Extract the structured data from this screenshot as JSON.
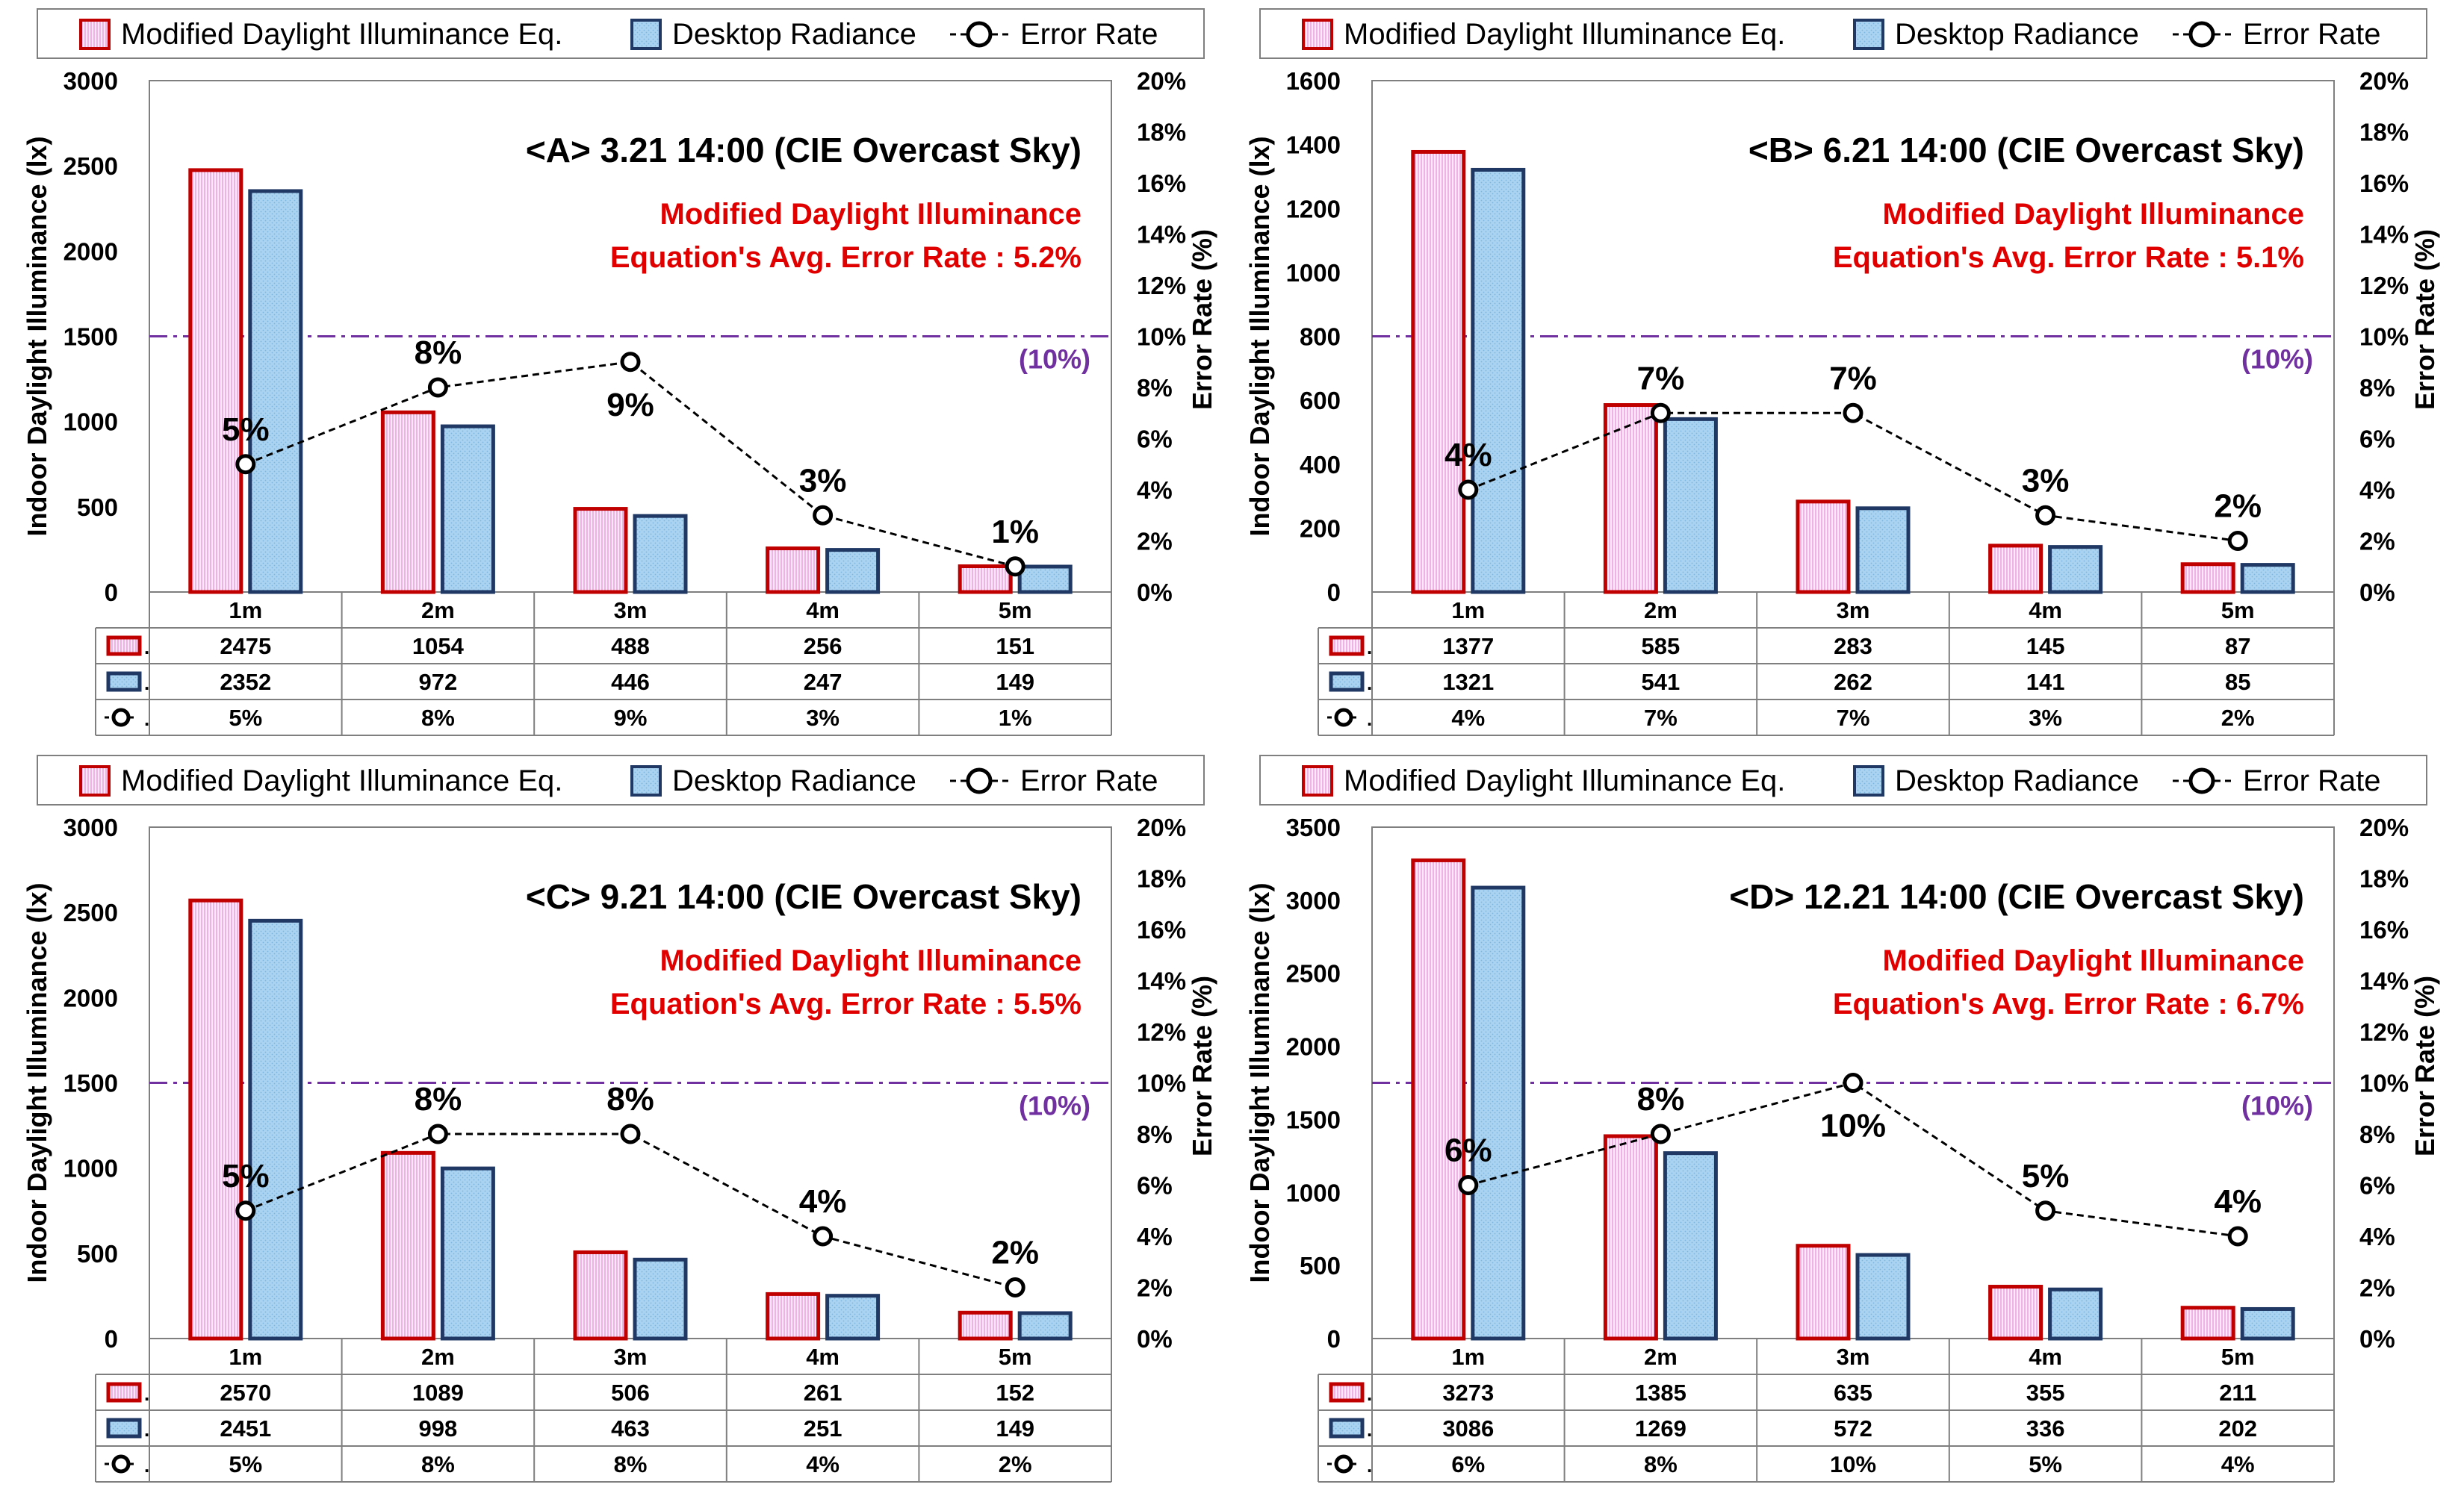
{
  "legend": {
    "modified": "Modified Daylight Illuminance Eq.",
    "desktop": "Desktop Radiance",
    "error": "Error Rate"
  },
  "axes": {
    "ylabel": "Indoor Daylight Illuminance (lx)",
    "y2label": "Error Rate (%)",
    "y2_ticks": [
      "0%",
      "2%",
      "4%",
      "6%",
      "8%",
      "10%",
      "12%",
      "14%",
      "16%",
      "18%",
      "20%"
    ],
    "threshold_label": "(10%)"
  },
  "colors": {
    "modified_border": "#c00000",
    "modified_fill": "#fbe3f7",
    "desktop_border": "#1f3864",
    "desktop_fill": "#a9d3f0",
    "threshold": "#7030a0",
    "annotation": "#e00000"
  },
  "chart_data": [
    {
      "type": "bar",
      "title": "<A> 3.21 14:00 (CIE Overcast Sky)",
      "annotation_line1": "Modified Daylight Illuminance",
      "annotation_line2": "Equation's Avg. Error Rate : 5.2%",
      "categories": [
        "1m",
        "2m",
        "3m",
        "4m",
        "5m"
      ],
      "ylim": [
        0,
        3000
      ],
      "yticks": [
        0,
        500,
        1000,
        1500,
        2000,
        2500,
        3000
      ],
      "y2lim": [
        0,
        20
      ],
      "threshold": 1500,
      "series": [
        {
          "name": "Modified Daylight Illuminance Eq.",
          "values": [
            2475,
            1054,
            488,
            256,
            151
          ]
        },
        {
          "name": "Desktop Radiance",
          "values": [
            2352,
            972,
            446,
            247,
            149
          ]
        }
      ],
      "error_rate": [
        5,
        8,
        9,
        3,
        1
      ],
      "error_labels": [
        "5%",
        "8%",
        "9%",
        "3%",
        "1%"
      ]
    },
    {
      "type": "bar",
      "title": "<B> 6.21 14:00 (CIE Overcast Sky)",
      "annotation_line1": "Modified Daylight Illuminance",
      "annotation_line2": "Equation's Avg. Error Rate : 5.1%",
      "categories": [
        "1m",
        "2m",
        "3m",
        "4m",
        "5m"
      ],
      "ylim": [
        0,
        1600
      ],
      "yticks": [
        0,
        200,
        400,
        600,
        800,
        1000,
        1200,
        1400,
        1600
      ],
      "y2lim": [
        0,
        20
      ],
      "threshold": 800,
      "series": [
        {
          "name": "Modified Daylight Illuminance Eq.",
          "values": [
            1377,
            585,
            283,
            145,
            87
          ]
        },
        {
          "name": "Desktop Radiance",
          "values": [
            1321,
            541,
            262,
            141,
            85
          ]
        }
      ],
      "error_rate": [
        4,
        7,
        7,
        3,
        2
      ],
      "error_labels": [
        "4%",
        "7%",
        "7%",
        "3%",
        "2%"
      ]
    },
    {
      "type": "bar",
      "title": "<C> 9.21 14:00 (CIE Overcast Sky)",
      "annotation_line1": "Modified Daylight Illuminance",
      "annotation_line2": "Equation's Avg. Error Rate : 5.5%",
      "categories": [
        "1m",
        "2m",
        "3m",
        "4m",
        "5m"
      ],
      "ylim": [
        0,
        3000
      ],
      "yticks": [
        0,
        500,
        1000,
        1500,
        2000,
        2500,
        3000
      ],
      "y2lim": [
        0,
        20
      ],
      "threshold": 1500,
      "series": [
        {
          "name": "Modified Daylight Illuminance Eq.",
          "values": [
            2570,
            1089,
            506,
            261,
            152
          ]
        },
        {
          "name": "Desktop Radiance",
          "values": [
            2451,
            998,
            463,
            251,
            149
          ]
        }
      ],
      "error_rate": [
        5,
        8,
        8,
        4,
        2
      ],
      "error_labels": [
        "5%",
        "8%",
        "8%",
        "4%",
        "2%"
      ]
    },
    {
      "type": "bar",
      "title": "<D> 12.21 14:00 (CIE Overcast Sky)",
      "annotation_line1": "Modified Daylight Illuminance",
      "annotation_line2": "Equation's Avg. Error Rate : 6.7%",
      "categories": [
        "1m",
        "2m",
        "3m",
        "4m",
        "5m"
      ],
      "ylim": [
        0,
        3500
      ],
      "yticks": [
        0,
        500,
        1000,
        1500,
        2000,
        2500,
        3000,
        3500
      ],
      "y2lim": [
        0,
        20
      ],
      "threshold": 1750,
      "series": [
        {
          "name": "Modified Daylight Illuminance Eq.",
          "values": [
            3273,
            1385,
            635,
            355,
            211
          ]
        },
        {
          "name": "Desktop Radiance",
          "values": [
            3086,
            1269,
            572,
            336,
            202
          ]
        }
      ],
      "error_rate": [
        6,
        8,
        10,
        5,
        4
      ],
      "error_labels": [
        "6%",
        "8%",
        "10%",
        "5%",
        "4%"
      ]
    }
  ]
}
